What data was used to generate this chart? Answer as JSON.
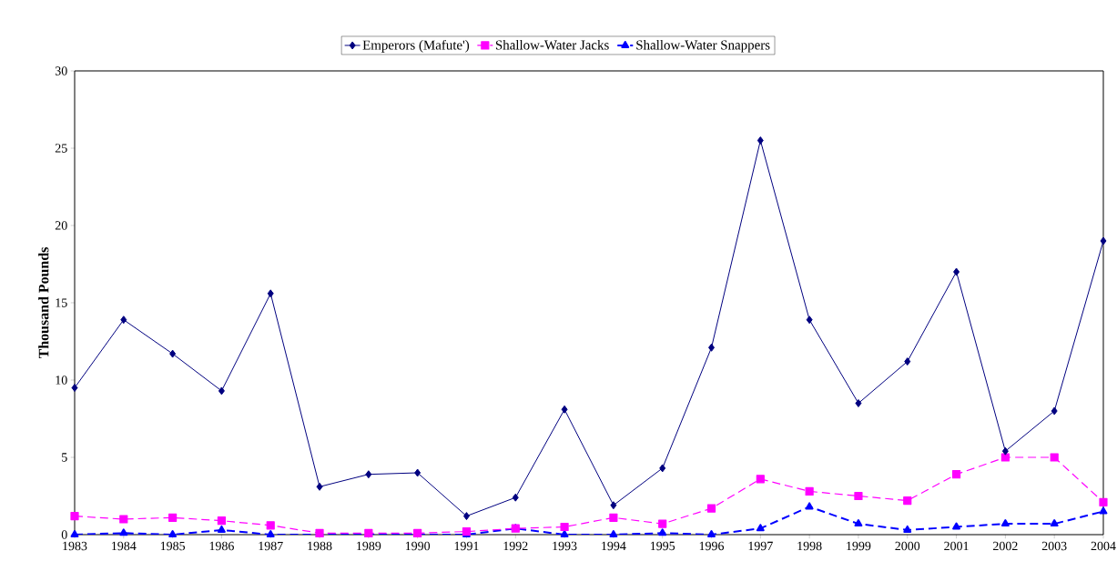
{
  "chart_data": {
    "type": "line",
    "ylabel": "Thousand Pounds",
    "categories": [
      "1983",
      "1984",
      "1985",
      "1986",
      "1987",
      "1988",
      "1989",
      "1990",
      "1991",
      "1992",
      "1993",
      "1994",
      "1995",
      "1996",
      "1997",
      "1998",
      "1999",
      "2000",
      "2001",
      "2002",
      "2003",
      "2004"
    ],
    "series": [
      {
        "name": "Emperors (Mafute')",
        "color": "#000080",
        "marker": "diamond",
        "line_style": "solid",
        "values": [
          9.5,
          13.9,
          11.7,
          9.3,
          15.6,
          3.1,
          3.9,
          4.0,
          1.2,
          2.4,
          8.1,
          1.9,
          4.3,
          12.1,
          25.5,
          13.9,
          8.5,
          11.2,
          17.0,
          5.4,
          8.0,
          19.0
        ]
      },
      {
        "name": "Shallow-Water Jacks",
        "color": "#ff00ff",
        "marker": "square",
        "line_style": "dashed",
        "values": [
          1.2,
          1.0,
          1.1,
          0.9,
          0.6,
          0.1,
          0.1,
          0.1,
          0.2,
          0.4,
          0.5,
          1.1,
          0.7,
          1.7,
          3.6,
          2.8,
          2.5,
          2.2,
          3.9,
          5.0,
          5.0,
          2.1
        ]
      },
      {
        "name": "Shallow-Water Snappers",
        "color": "#0000ff",
        "marker": "triangle",
        "line_style": "dashed",
        "values": [
          0,
          0.1,
          0,
          0.3,
          0,
          0,
          0,
          0,
          0,
          0.4,
          0,
          0,
          0.1,
          0,
          0.4,
          1.8,
          0.7,
          0.3,
          0.5,
          0.7,
          0.7,
          1.5
        ]
      }
    ],
    "ylim": [
      0,
      30
    ],
    "yticks": [
      0,
      5,
      10,
      15,
      20,
      25,
      30
    ],
    "grid": false,
    "legend": "top"
  }
}
